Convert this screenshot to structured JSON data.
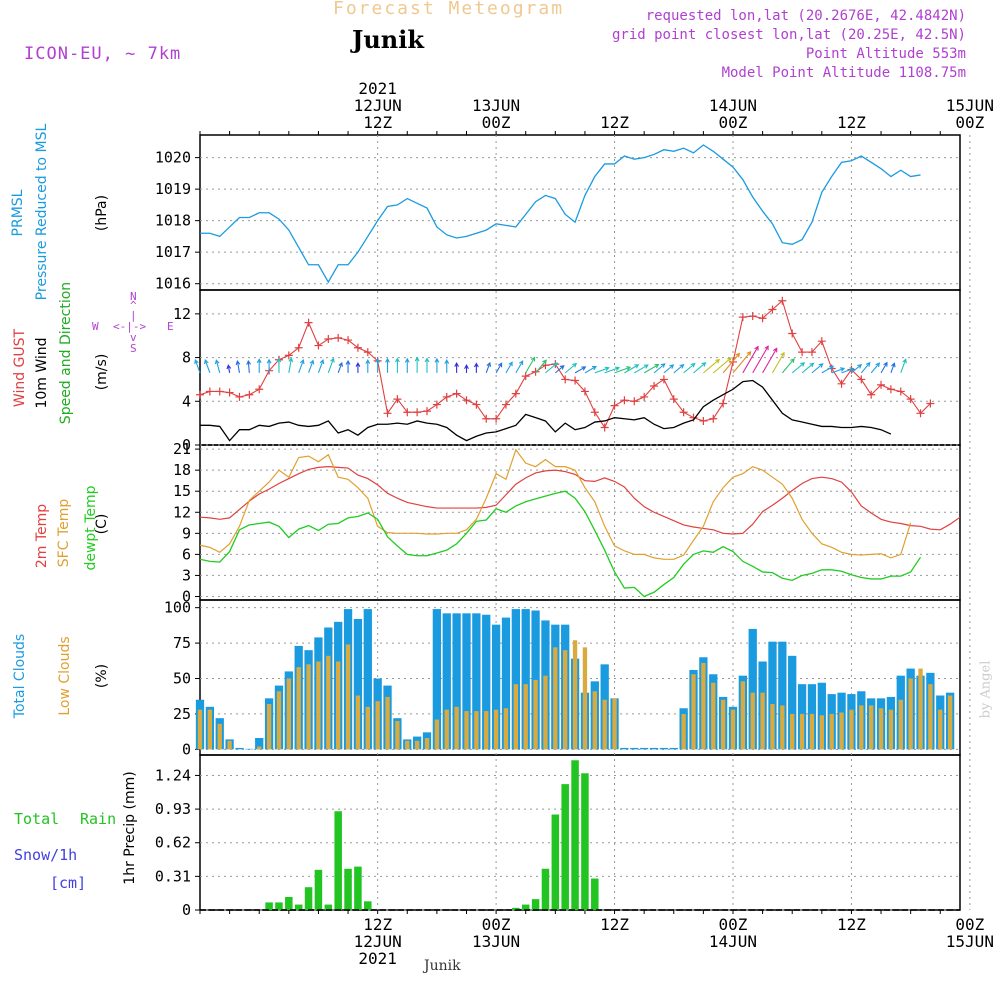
{
  "header": {
    "title": "Forecast Meteogram",
    "location": "Junik",
    "model": "ICON-EU, ~ 7km",
    "requested_point": "requested lon,lat (20.2676E, 42.4842N)",
    "grid_point": "grid point closest lon,lat (20.25E, 42.5N)",
    "point_altitude": "Point Altitude 553m",
    "model_altitude": "Model Point Altitude 1108.75m",
    "credit": "by Angel",
    "footer_location": "Junik"
  },
  "colors": {
    "pressure": "#1a9be0",
    "gust": "#e04040",
    "wind": "#000000",
    "wind_direction": "#22aa22",
    "temp2m": "#e04040",
    "sfc_temp": "#e0a030",
    "dewpoint": "#22cc22",
    "total_clouds": "#1a9be0",
    "low_clouds": "#d9aa40",
    "rain": "#22c422",
    "snow": "#4040e0",
    "info_purple": "#b040d0"
  },
  "time_axis": {
    "top_ticks": [
      {
        "lines": [
          "2021",
          "12JUN",
          "12Z"
        ],
        "hour": 18
      },
      {
        "lines": [
          "13JUN",
          "00Z"
        ],
        "hour": 30
      },
      {
        "lines": [
          "12Z"
        ],
        "hour": 42
      },
      {
        "lines": [
          "14JUN",
          "00Z"
        ],
        "hour": 54
      },
      {
        "lines": [
          "12Z"
        ],
        "hour": 66
      },
      {
        "lines": [
          "15JUN",
          "00Z"
        ],
        "hour": 78
      }
    ],
    "bottom_ticks": [
      {
        "lines": [
          "12Z",
          "12JUN",
          "2021"
        ],
        "hour": 18
      },
      {
        "lines": [
          "00Z",
          "13JUN"
        ],
        "hour": 30
      },
      {
        "lines": [
          "12Z"
        ],
        "hour": 42
      },
      {
        "lines": [
          "00Z",
          "14JUN"
        ],
        "hour": 54
      },
      {
        "lines": [
          "12Z"
        ],
        "hour": 66
      },
      {
        "lines": [
          "00Z",
          "15JUN"
        ],
        "hour": 78
      }
    ]
  },
  "panel_labels": {
    "pressure": {
      "name": "PRMSL",
      "desc": "Pressure Reduced to MSL",
      "unit": "(hPa)"
    },
    "wind": {
      "gust": "Wind GUST",
      "wind": "10m Wind",
      "dir": "Speed and Direction",
      "unit": "(m/s)",
      "compass": {
        "n": "N",
        "s": "S",
        "w": "W",
        "e": "E",
        "arrow_we": "<-|->",
        "bar_up": "^",
        "bar_mid": "|",
        "bar_down": "v"
      }
    },
    "temp": {
      "t2m": "2m Temp",
      "sfc": "SFC Temp",
      "dew": "dewpt Temp",
      "unit": "(C)"
    },
    "clouds": {
      "total": "Total Clouds",
      "low": "Low Clouds",
      "unit": "(%)"
    },
    "precip": {
      "total": "Total",
      "rain": "Rain",
      "snow": "Snow/1h",
      "snow_unit": "[cm]",
      "axis": "1hr Precip (mm)"
    }
  },
  "chart_data": [
    {
      "type": "line",
      "title": "PRMSL Pressure Reduced to MSL",
      "ylabel": "hPa",
      "x_start_hour": 0,
      "x_step_hours": 1,
      "ylim": [
        1015.8,
        1020.4
      ],
      "yticks": [
        1016,
        1017,
        1018,
        1019,
        1020
      ],
      "series": [
        {
          "name": "PRMSL",
          "values": [
            1017.6,
            1017.6,
            1017.5,
            1017.8,
            1018.1,
            1018.1,
            1018.25,
            1018.25,
            1018.05,
            1017.7,
            1017.15,
            1016.6,
            1016.6,
            1016.05,
            1016.6,
            1016.6,
            1017.0,
            1017.5,
            1018.0,
            1018.45,
            1018.5,
            1018.7,
            1018.55,
            1018.4,
            1017.8,
            1017.55,
            1017.45,
            1017.5,
            1017.6,
            1017.7,
            1017.9,
            1017.85,
            1017.8,
            1018.2,
            1018.6,
            1018.8,
            1018.7,
            1018.2,
            1017.95,
            1018.8,
            1019.4,
            1019.8,
            1019.8,
            1020.05,
            1019.95,
            1020.0,
            1020.1,
            1020.25,
            1020.2,
            1020.3,
            1020.15,
            1020.4,
            1020.2,
            1019.95,
            1019.7,
            1019.3,
            1018.75,
            1018.3,
            1017.9,
            1017.3,
            1017.25,
            1017.4,
            1017.95,
            1018.9,
            1019.4,
            1019.85,
            1019.9,
            1020.05,
            1019.85,
            1019.65,
            1019.4,
            1019.6,
            1019.4,
            1019.45
          ]
        }
      ]
    },
    {
      "type": "line",
      "title": "Wind GUST / 10m Wind Speed and Direction",
      "ylabel": "m/s",
      "x_start_hour": 0,
      "x_step_hours": 1,
      "ylim": [
        0,
        14
      ],
      "yticks": [
        0,
        4,
        8,
        12
      ],
      "series": [
        {
          "name": "Wind GUST",
          "values": [
            4.6,
            4.9,
            4.9,
            4.8,
            4.4,
            4.6,
            5.1,
            6.8,
            7.8,
            8.2,
            8.9,
            11.2,
            9.1,
            9.7,
            9.8,
            9.6,
            8.9,
            8.5,
            7.7,
            2.9,
            4.2,
            3.0,
            3.0,
            3.1,
            3.7,
            4.4,
            4.7,
            4.1,
            3.7,
            2.4,
            2.4,
            3.7,
            4.7,
            6.3,
            6.7,
            7.3,
            7.4,
            6.0,
            5.9,
            4.9,
            3.0,
            1.6,
            3.6,
            4.1,
            4.0,
            4.4,
            5.4,
            6.0,
            4.2,
            3.0,
            2.5,
            2.2,
            2.4,
            3.8,
            7.6,
            11.7,
            11.8,
            11.6,
            12.4,
            13.2,
            10.2,
            8.5,
            8.5,
            9.5,
            7.0,
            5.6,
            6.9,
            6.0,
            4.6,
            5.5,
            5.1,
            4.9,
            4.2,
            2.9,
            3.8
          ]
        },
        {
          "name": "10m Wind",
          "values": [
            1.8,
            1.8,
            1.7,
            0.4,
            1.4,
            1.4,
            1.8,
            1.7,
            2.0,
            2.1,
            1.8,
            1.7,
            1.8,
            2.2,
            1.1,
            1.4,
            0.9,
            1.6,
            1.9,
            1.9,
            2.0,
            1.9,
            2.2,
            2.0,
            1.9,
            1.6,
            0.9,
            0.4,
            0.8,
            1.1,
            1.2,
            1.5,
            1.8,
            2.8,
            2.5,
            2.2,
            1.2,
            2.0,
            1.4,
            1.6,
            2.1,
            2.2,
            2.5,
            2.4,
            2.3,
            2.5,
            1.9,
            1.5,
            1.6,
            2.0,
            2.3,
            3.5,
            4.1,
            4.6,
            5.1,
            5.8,
            5.9,
            5.3,
            4.1,
            2.9,
            2.3,
            2.1,
            1.9,
            1.7,
            1.7,
            1.6,
            1.6,
            1.7,
            1.6,
            1.4,
            1.0
          ]
        },
        {
          "name": "Wind Direction",
          "values_deg": [
            160,
            160,
            165,
            170,
            170,
            175,
            180,
            180,
            180,
            190,
            200,
            200,
            200,
            200,
            200,
            180,
            180,
            180,
            180,
            180,
            180,
            180,
            180,
            180,
            180,
            180,
            180,
            180,
            180,
            200,
            210,
            210,
            210,
            210,
            220,
            230,
            230,
            230,
            240,
            240,
            250,
            250,
            250,
            240,
            240,
            240,
            230,
            230,
            230,
            230,
            230,
            230,
            230,
            220,
            220,
            210,
            210,
            210,
            210,
            220,
            230,
            230,
            230,
            240,
            250,
            250,
            230,
            220,
            220,
            210,
            200,
            200
          ]
        }
      ]
    },
    {
      "type": "line",
      "title": "2m Temp / SFC Temp / dewpt Temp",
      "ylabel": "C",
      "x_start_hour": 0,
      "x_step_hours": 1,
      "ylim": [
        -0.5,
        21.3
      ],
      "yticks": [
        0,
        3,
        6,
        9,
        12,
        15,
        18,
        21
      ],
      "series": [
        {
          "name": "2m Temp",
          "values": [
            11.3,
            11.2,
            11.0,
            11.2,
            12.4,
            13.6,
            14.6,
            15.3,
            16.1,
            16.8,
            17.5,
            18.1,
            18.4,
            18.5,
            18.4,
            18.3,
            17.3,
            16.8,
            15.9,
            14.7,
            14.0,
            13.4,
            13.1,
            12.8,
            12.6,
            12.6,
            12.6,
            12.6,
            12.6,
            12.7,
            13.0,
            14.5,
            16.0,
            16.9,
            17.6,
            17.9,
            18.0,
            17.8,
            17.4,
            16.5,
            16.4,
            16.9,
            16.4,
            15.6,
            14.0,
            12.8,
            12.0,
            11.4,
            10.8,
            10.2,
            9.9,
            9.7,
            9.5,
            9.0,
            8.9,
            9.0,
            10.3,
            12.1,
            13.0,
            14.0,
            15.1,
            16.1,
            16.8,
            17.0,
            16.8,
            16.3,
            14.9,
            12.9,
            11.9,
            11.0,
            10.6,
            10.4,
            10.1,
            10.0,
            9.6,
            9.5,
            10.3,
            11.3
          ]
        },
        {
          "name": "SFC Temp",
          "values": [
            7.3,
            7.0,
            6.3,
            7.5,
            10.0,
            13.7,
            15.0,
            16.3,
            18.0,
            17.0,
            19.8,
            20.0,
            19.2,
            20.2,
            17.0,
            16.7,
            15.5,
            14.0,
            10.0,
            9.1,
            9.0,
            9.0,
            9.0,
            8.9,
            8.9,
            9.0,
            9.0,
            9.5,
            11.0,
            14.0,
            17.5,
            16.7,
            20.9,
            19.0,
            18.5,
            19.5,
            18.5,
            18.5,
            18.0,
            15.5,
            13.5,
            10.0,
            7.2,
            6.5,
            6.0,
            6.0,
            5.5,
            5.3,
            5.3,
            5.9,
            8.0,
            10.0,
            13.5,
            15.5,
            17.0,
            17.5,
            18.5,
            18.0,
            17.0,
            16.0,
            14.0,
            11.0,
            9.0,
            7.5,
            7.0,
            6.3,
            6.0,
            5.9,
            6.0,
            6.1,
            5.5,
            6.0,
            10.5
          ]
        },
        {
          "name": "dewpt Temp",
          "values": [
            5.3,
            5.0,
            4.9,
            6.4,
            9.5,
            10.2,
            10.4,
            10.6,
            10.0,
            8.4,
            9.6,
            10.1,
            9.4,
            10.3,
            10.4,
            11.2,
            11.4,
            11.9,
            11.0,
            8.5,
            7.2,
            6.0,
            5.8,
            5.8,
            6.2,
            6.6,
            7.5,
            9.0,
            10.7,
            10.9,
            12.5,
            12.0,
            12.9,
            13.5,
            13.9,
            14.3,
            14.7,
            15.0,
            14.0,
            12.1,
            9.4,
            6.6,
            3.5,
            1.2,
            1.3,
            0.0,
            0.6,
            1.7,
            2.7,
            4.6,
            6.0,
            6.5,
            6.3,
            7.1,
            6.4,
            5.0,
            4.3,
            3.5,
            3.4,
            2.6,
            2.3,
            3.0,
            3.3,
            3.8,
            3.8,
            3.6,
            3.1,
            2.7,
            2.5,
            2.5,
            2.9,
            2.9,
            3.5,
            5.6
          ]
        }
      ]
    },
    {
      "type": "bar",
      "title": "Total Clouds / Low Clouds",
      "ylabel": "%",
      "x_start_hour": 0,
      "x_step_hours": 1,
      "ylim": [
        -4,
        104
      ],
      "yticks": [
        0,
        25,
        50,
        75,
        100
      ],
      "series": [
        {
          "name": "Total Clouds",
          "values": [
            35,
            30,
            22,
            7,
            1,
            0,
            8,
            36,
            45,
            55,
            73,
            70,
            79,
            86,
            90,
            99,
            92,
            99,
            50,
            45,
            22,
            7,
            9,
            12,
            99,
            96,
            96,
            96,
            96,
            95,
            88,
            93,
            99,
            99,
            98,
            91,
            88,
            88,
            64,
            40,
            48,
            60,
            36,
            1,
            1,
            1,
            1,
            1,
            1,
            29,
            56,
            65,
            53,
            37,
            30,
            52,
            85,
            62,
            76,
            76,
            66,
            46,
            46,
            47,
            39,
            40,
            39,
            41,
            36,
            36,
            37,
            52,
            57,
            52,
            54,
            38,
            40
          ]
        },
        {
          "name": "Low Clouds",
          "values": [
            28,
            28,
            18,
            6,
            0,
            0,
            2,
            32,
            41,
            50,
            58,
            60,
            62,
            66,
            62,
            74,
            38,
            30,
            34,
            37,
            20,
            6,
            6,
            8,
            21,
            28,
            30,
            27,
            27,
            27,
            28,
            29,
            46,
            46,
            49,
            52,
            72,
            70,
            77,
            72,
            41,
            35,
            36,
            0,
            0,
            0,
            0,
            0,
            0,
            25,
            53,
            61,
            47,
            35,
            28,
            48,
            40,
            40,
            32,
            31,
            25,
            25,
            25,
            24,
            25,
            26,
            28,
            31,
            31,
            29,
            28,
            35,
            50,
            57,
            46,
            28,
            38
          ]
        }
      ]
    },
    {
      "type": "bar",
      "title": "Total Rain / Snow 1h",
      "ylabel": "1hr Precip (mm)",
      "x_start_hour": 0,
      "x_step_hours": 1,
      "ylim": [
        0,
        1.41
      ],
      "yticks": [
        0,
        0.31,
        0.62,
        0.93,
        1.24
      ],
      "series": [
        {
          "name": "Total Rain",
          "values": [
            0,
            0,
            0,
            0,
            0,
            0,
            0,
            0.07,
            0.07,
            0.12,
            0.05,
            0.21,
            0.37,
            0.05,
            0.91,
            0.38,
            0.4,
            0.08,
            0,
            0,
            0,
            0,
            0,
            0,
            0,
            0,
            0,
            0,
            0,
            0,
            0,
            0,
            0.02,
            0.05,
            0.1,
            0.38,
            0.88,
            1.16,
            1.38,
            1.26,
            0.29,
            0,
            0,
            0,
            0,
            0,
            0,
            0,
            0,
            0,
            0,
            0,
            0,
            0,
            0,
            0,
            0,
            0,
            0,
            0,
            0,
            0,
            0,
            0,
            0,
            0,
            0,
            0,
            0,
            0,
            0,
            0,
            0,
            0,
            0,
            0,
            0
          ]
        },
        {
          "name": "Snow/1h",
          "values": []
        }
      ]
    }
  ]
}
